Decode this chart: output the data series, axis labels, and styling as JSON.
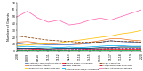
{
  "x": [
    0,
    1,
    2,
    3,
    4,
    5,
    6,
    7,
    8,
    9,
    10,
    11,
    12
  ],
  "xtick_labels": [
    "2008",
    "08-09",
    "09-10",
    "10-11",
    "11-12",
    "12-13",
    "13-14",
    "14-15",
    "15-16",
    "16-17",
    "17-18",
    "18-19",
    "2020"
  ],
  "series": {
    "Systemic Lupus Erythematosus": {
      "values": [
        10,
        12,
        10,
        9,
        9,
        9,
        10,
        11,
        13,
        15,
        14,
        13,
        13
      ],
      "color": "#4472C4",
      "style": "-"
    },
    "Rheumatoid Arthritis": {
      "values": [
        13,
        14,
        12,
        10,
        11,
        12,
        10,
        13,
        15,
        18,
        18,
        16,
        15
      ],
      "color": "#ED7D31",
      "style": "-"
    },
    "Psoriasis": {
      "values": [
        4,
        4,
        4,
        4,
        3,
        4,
        4,
        4,
        4,
        4,
        5,
        5,
        5
      ],
      "color": "#A9D18E",
      "style": "-"
    },
    "Inflammatory Bowel Disease": {
      "values": [
        8,
        9,
        10,
        11,
        12,
        14,
        16,
        18,
        20,
        22,
        25,
        27,
        30
      ],
      "color": "#FFC000",
      "style": "-"
    },
    "Primary Biliary Cholangitis": {
      "values": [
        2,
        2,
        3,
        2,
        2,
        2,
        2,
        3,
        3,
        3,
        3,
        3,
        3
      ],
      "color": "#FF0000",
      "style": "-"
    },
    "Celiac Disease": {
      "values": [
        2,
        2,
        2,
        2,
        2,
        2,
        3,
        3,
        3,
        4,
        4,
        4,
        4
      ],
      "color": "#7030A0",
      "style": "--"
    },
    "Sjogren Syndrome": {
      "values": [
        4,
        4,
        4,
        3,
        4,
        4,
        4,
        4,
        5,
        5,
        6,
        6,
        6
      ],
      "color": "#002060",
      "style": "-"
    },
    "Systemic Sclerosis/Scleroderma": {
      "values": [
        6,
        7,
        6,
        6,
        5,
        6,
        5,
        6,
        7,
        8,
        8,
        7,
        7
      ],
      "color": "#00B0F0",
      "style": "-"
    },
    "Type 1 Diabetes": {
      "values": [
        22,
        20,
        18,
        16,
        15,
        14,
        13,
        13,
        13,
        15,
        14,
        14,
        13
      ],
      "color": "#833C00",
      "style": "--"
    },
    "Antiphospholipid Syndrome": {
      "values": [
        1,
        1,
        1,
        1,
        1,
        1,
        1,
        1,
        2,
        2,
        2,
        2,
        2
      ],
      "color": "#C00000",
      "style": "--"
    },
    "Myasthenia": {
      "values": [
        2,
        2,
        2,
        2,
        2,
        2,
        2,
        2,
        2,
        2,
        2,
        2,
        2
      ],
      "color": "#00B050",
      "style": "-"
    },
    "Other Autoimmune Disease": {
      "values": [
        50,
        58,
        48,
        42,
        45,
        38,
        40,
        45,
        48,
        45,
        50,
        55,
        60
      ],
      "color": "#FF69B4",
      "style": "-"
    }
  },
  "ylabel": "Number of Grants",
  "ylim": [
    0,
    70
  ],
  "yticks": [
    0,
    10,
    20,
    30,
    40,
    50,
    60,
    70
  ],
  "background_color": "#FFFFFF"
}
